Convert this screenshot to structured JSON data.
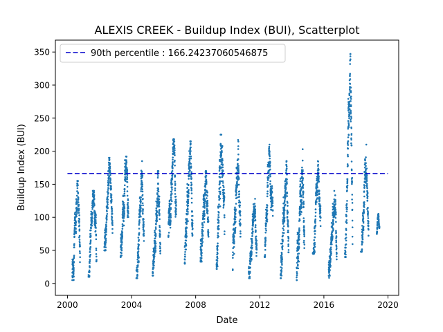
{
  "chart_data": {
    "type": "scatter",
    "title": "ALEXIS CREEK - Buildup Index (BUI), Scatterplot",
    "xlabel": "Date",
    "ylabel": "Buildup Index (BUI)",
    "xlim": [
      "1999-04-01",
      "2020-09-01"
    ],
    "ylim": [
      -18,
      368
    ],
    "xticks": [
      "2000",
      "2004",
      "2008",
      "2012",
      "2016",
      "2020"
    ],
    "xtick_dates": [
      "2000-01-01",
      "2004-01-01",
      "2008-01-01",
      "2012-01-01",
      "2016-01-01",
      "2020-01-01"
    ],
    "yticks": [
      0,
      50,
      100,
      150,
      200,
      250,
      300,
      350
    ],
    "grid": false,
    "legend_position": "upper-left",
    "colors": {
      "points": "#1f77b4",
      "reference_line": "#0000cc"
    },
    "reference_line": {
      "label": "90th percentile : 166.24237060546875",
      "value": 166.24237060546875,
      "x_start": "2000-01-01",
      "x_end": "2019-12-31",
      "style": "dashed"
    },
    "series": [
      {
        "fire_seasons": [
          {
            "start": "2000-04-20",
            "end": "2000-10-15",
            "low": 5,
            "high": 155
          },
          {
            "start": "2001-04-25",
            "end": "2001-10-25",
            "low": 10,
            "high": 140
          },
          {
            "start": "2002-04-20",
            "end": "2002-10-25",
            "low": 50,
            "high": 190
          },
          {
            "start": "2003-04-25",
            "end": "2003-10-20",
            "low": 40,
            "high": 192
          },
          {
            "start": "2004-04-20",
            "end": "2004-10-10",
            "low": 8,
            "high": 185
          },
          {
            "start": "2005-04-25",
            "end": "2005-10-20",
            "low": 12,
            "high": 170
          },
          {
            "start": "2006-04-20",
            "end": "2006-10-15",
            "low": 70,
            "high": 218
          },
          {
            "start": "2007-04-25",
            "end": "2007-10-25",
            "low": 30,
            "high": 215
          },
          {
            "start": "2008-04-20",
            "end": "2008-10-20",
            "low": 33,
            "high": 170
          },
          {
            "start": "2009-04-20",
            "end": "2009-10-20",
            "low": 22,
            "high": 225
          },
          {
            "start": "2010-04-25",
            "end": "2010-10-20",
            "low": 20,
            "high": 217
          },
          {
            "start": "2011-04-25",
            "end": "2011-10-25",
            "low": 8,
            "high": 128
          },
          {
            "start": "2012-04-20",
            "end": "2012-10-25",
            "low": 40,
            "high": 210
          },
          {
            "start": "2013-04-20",
            "end": "2013-10-20",
            "low": 8,
            "high": 185
          },
          {
            "start": "2014-04-20",
            "end": "2014-10-15",
            "low": 5,
            "high": 203
          },
          {
            "start": "2015-04-25",
            "end": "2015-10-20",
            "low": 45,
            "high": 185
          },
          {
            "start": "2016-04-20",
            "end": "2016-10-20",
            "low": 8,
            "high": 140
          },
          {
            "start": "2017-04-25",
            "end": "2017-10-15",
            "low": 40,
            "high": 347
          },
          {
            "start": "2018-04-25",
            "end": "2018-10-15",
            "low": 48,
            "high": 210
          },
          {
            "start": "2019-04-20",
            "end": "2019-06-20",
            "low": 75,
            "high": 105
          }
        ]
      }
    ]
  }
}
